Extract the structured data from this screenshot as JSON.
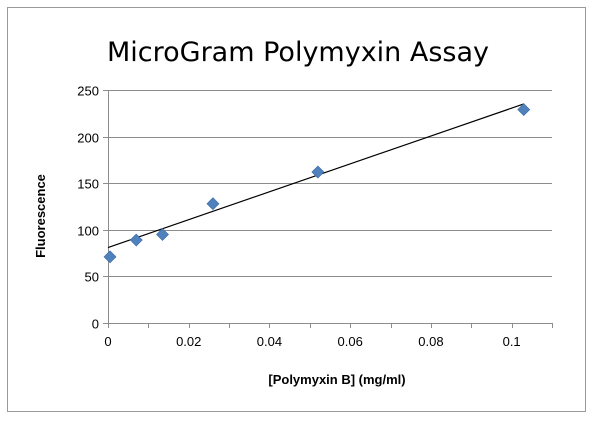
{
  "chart_data": {
    "type": "scatter",
    "title": "MicroGram Polymyxin Assay",
    "xlabel": "[Polymyxin B] (mg/ml)",
    "ylabel": "Fluorescence",
    "xlim": [
      0,
      0.11
    ],
    "ylim": [
      0,
      250
    ],
    "x_ticks": [
      "0",
      "0.02",
      "0.04",
      "0.06",
      "0.08",
      "0.1"
    ],
    "x_tick_values": [
      0,
      0.02,
      0.04,
      0.06,
      0.08,
      0.1
    ],
    "y_ticks": [
      "0",
      "50",
      "100",
      "150",
      "200",
      "250"
    ],
    "y_tick_values": [
      0,
      50,
      100,
      150,
      200,
      250
    ],
    "grid": "horizontal",
    "legend": "none",
    "series": [
      {
        "marker": "diamond",
        "color": "#4f81bd",
        "x": [
          0.0005,
          0.007,
          0.0135,
          0.026,
          0.052,
          0.103
        ],
        "y": [
          71,
          89,
          95,
          128,
          162,
          229
        ]
      }
    ],
    "trendline": {
      "type": "linear",
      "color": "#000000",
      "from": [
        0,
        81
      ],
      "to": [
        0.103,
        235
      ]
    }
  }
}
